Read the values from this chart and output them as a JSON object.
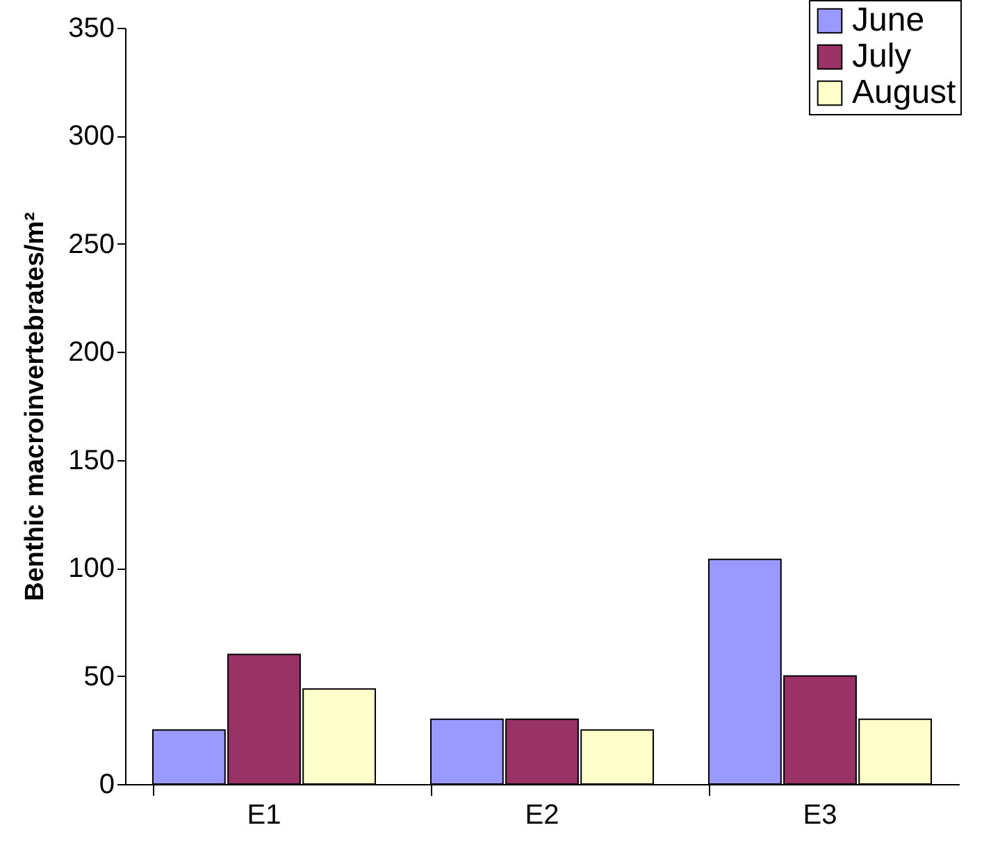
{
  "chart_data": {
    "type": "bar",
    "ylabel": "Benthic macroinvertebrates/m²",
    "categories": [
      "E1",
      "E2",
      "E3"
    ],
    "series": [
      {
        "name": "June",
        "color": "#9999ff",
        "values": [
          25,
          30,
          104
        ]
      },
      {
        "name": "July",
        "color": "#993366",
        "values": [
          60,
          30,
          50
        ]
      },
      {
        "name": "August",
        "color": "#ffffcc",
        "values": [
          44,
          25,
          30
        ]
      }
    ],
    "ylim": [
      0,
      350
    ],
    "yticks": [
      0,
      50,
      100,
      150,
      200,
      250,
      300,
      350
    ],
    "legend": "top right"
  }
}
